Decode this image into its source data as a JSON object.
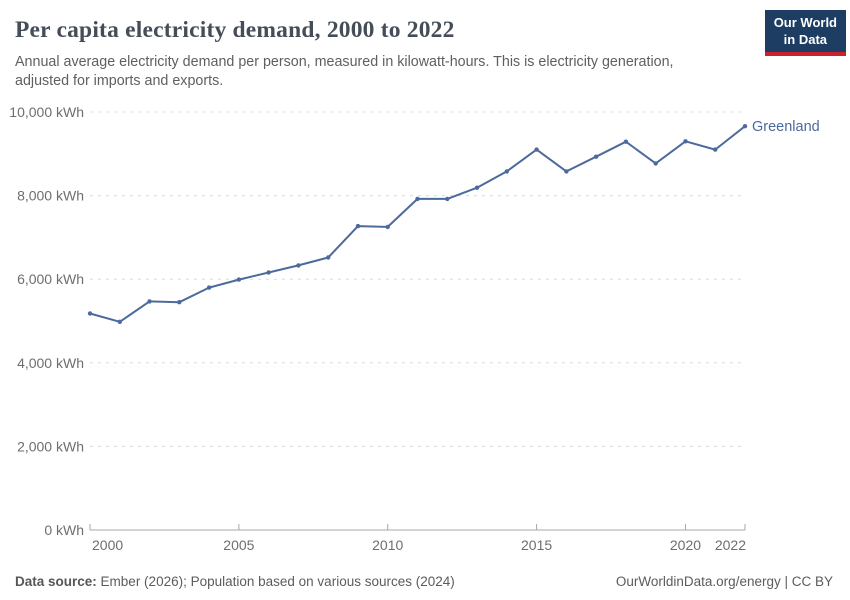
{
  "header": {
    "title": "Per capita electricity demand, 2000 to 2022",
    "subtitle": "Annual average electricity demand per person, measured in kilowatt-hours. This is electricity generation, adjusted for imports and exports.",
    "logo": {
      "line1": "Our World",
      "line2": "in Data"
    }
  },
  "chart_data": {
    "type": "line",
    "title": "Per capita electricity demand, 2000 to 2022",
    "x": [
      2000,
      2001,
      2002,
      2003,
      2004,
      2005,
      2006,
      2007,
      2008,
      2009,
      2010,
      2011,
      2012,
      2013,
      2014,
      2015,
      2016,
      2017,
      2018,
      2019,
      2020,
      2021,
      2022
    ],
    "series": [
      {
        "name": "Greenland",
        "color": "#4C6A9C",
        "values": [
          5180,
          4980,
          5470,
          5450,
          5800,
          5990,
          6160,
          6330,
          6520,
          7270,
          7250,
          7920,
          7920,
          8190,
          8580,
          9100,
          8580,
          8930,
          9290,
          8770,
          9300,
          9100,
          9660
        ]
      }
    ],
    "unit": "kWh",
    "ylim": [
      0,
      10000
    ],
    "yticks": [
      {
        "value": 0,
        "label": "0 kWh"
      },
      {
        "value": 2000,
        "label": "2,000 kWh"
      },
      {
        "value": 4000,
        "label": "4,000 kWh"
      },
      {
        "value": 6000,
        "label": "6,000 kWh"
      },
      {
        "value": 8000,
        "label": "8,000 kWh"
      },
      {
        "value": 10000,
        "label": "10,000 kWh"
      }
    ],
    "xticks": [
      {
        "value": 2000,
        "label": "2000"
      },
      {
        "value": 2005,
        "label": "2005"
      },
      {
        "value": 2010,
        "label": "2010"
      },
      {
        "value": 2015,
        "label": "2015"
      },
      {
        "value": 2020,
        "label": "2020"
      },
      {
        "value": 2022,
        "label": "2022"
      }
    ],
    "grid": "horizontal-dashed",
    "legend_position": "line-end-label"
  },
  "footer": {
    "source_label": "Data source:",
    "source_text": "Ember (2026); Population based on various sources (2024)",
    "right_text": "OurWorldinData.org/energy | CC BY"
  },
  "colors": {
    "series_blue": "#4C6A9C",
    "logo_navy": "#1D3D63",
    "logo_red": "#C8232D",
    "grid_gray": "#DBDBDB",
    "axis_gray": "#A7A7A7",
    "tick_label_gray": "#6E6E6E",
    "title_color": "#454D58",
    "subtitle_gray": "#5F5F5F",
    "footer_gray": "#5C5C5C"
  }
}
